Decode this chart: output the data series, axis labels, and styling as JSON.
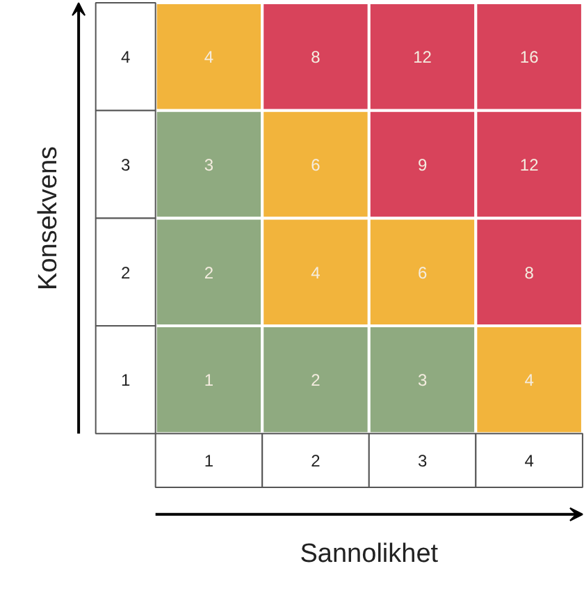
{
  "chart_data": {
    "type": "heatmap",
    "xlabel": "Sannolikhet",
    "ylabel": "Konsekvens",
    "categories": [
      "1",
      "2",
      "3",
      "4"
    ],
    "y_categories": [
      "4",
      "3",
      "2",
      "1"
    ],
    "cells": [
      [
        4,
        8,
        12,
        16
      ],
      [
        3,
        6,
        9,
        12
      ],
      [
        2,
        4,
        6,
        8
      ],
      [
        1,
        2,
        3,
        4
      ]
    ],
    "colors": [
      [
        "#f2b43c",
        "#d8435b",
        "#d8435b",
        "#d8435b"
      ],
      [
        "#8faa80",
        "#f2b43c",
        "#d8435b",
        "#d8435b"
      ],
      [
        "#8faa80",
        "#f2b43c",
        "#f2b43c",
        "#d8435b"
      ],
      [
        "#8faa80",
        "#8faa80",
        "#8faa80",
        "#f2b43c"
      ]
    ],
    "data_labels": true
  }
}
